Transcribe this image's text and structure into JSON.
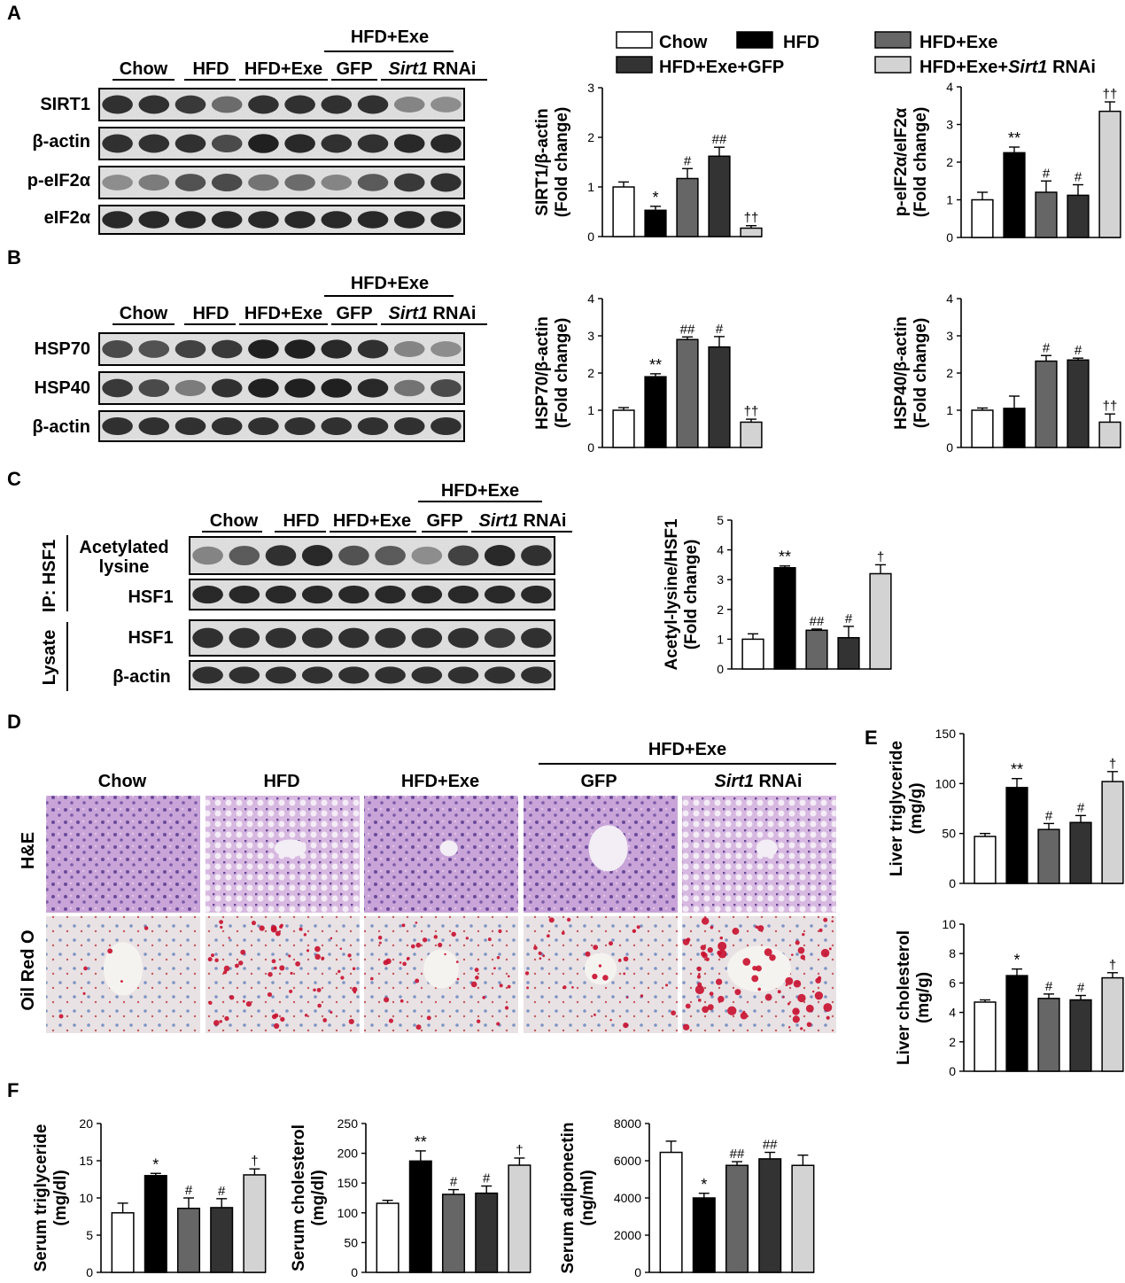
{
  "panel_letters": [
    "A",
    "B",
    "C",
    "D",
    "E",
    "F"
  ],
  "groups": [
    "Chow",
    "HFD",
    "HFD+Exe",
    "GFP",
    "Sirt1 RNAi"
  ],
  "hfd_exe_header": "HFD+Exe",
  "sirt1_italic": "Sirt1",
  "rnai_suffix": " RNAi",
  "legend": {
    "entries": [
      "Chow",
      "HFD",
      "HFD+Exe",
      "HFD+Exe+GFP",
      "HFD+Exe+Sirt1 RNAi"
    ],
    "gfp_label": "HFD+Exe+GFP",
    "sirt1_prefix": "HFD+Exe+",
    "colors": [
      "#ffffff",
      "#000000",
      "#666666",
      "#333333",
      "#d3d3d3"
    ]
  },
  "blots": {
    "A": [
      "SIRT1",
      "β-actin",
      "p-eIF2α",
      "eIF2α"
    ],
    "B": [
      "HSP70",
      "HSP40",
      "β-actin"
    ],
    "C_ip_label": "IP: HSF1",
    "C_lysate_label": "Lysate",
    "C_rows": [
      "Acetylated",
      "lysine",
      "HSF1",
      "HSF1",
      "β-actin"
    ]
  },
  "histology": {
    "rows": [
      "H&E",
      "Oil Red O"
    ]
  },
  "chart_data": [
    {
      "id": "A1",
      "type": "bar",
      "ylabel": [
        "SIRT1/β-actin",
        "(Fold change)"
      ],
      "ylim": [
        0,
        3
      ],
      "ticks": [
        0,
        1,
        2,
        3
      ],
      "values": [
        1.0,
        0.53,
        1.17,
        1.62,
        0.17
      ],
      "errors": [
        0.1,
        0.08,
        0.2,
        0.18,
        0.05
      ],
      "annotations": [
        "",
        "*",
        "#",
        "##",
        "††"
      ]
    },
    {
      "id": "A2",
      "type": "bar",
      "ylabel": [
        "p-eIF2α/eIF2α",
        "(Fold change)"
      ],
      "ylim": [
        0,
        4
      ],
      "ticks": [
        0,
        1,
        2,
        3,
        4
      ],
      "values": [
        1.0,
        2.25,
        1.2,
        1.12,
        3.35
      ],
      "errors": [
        0.2,
        0.15,
        0.3,
        0.28,
        0.25
      ],
      "annotations": [
        "",
        "**",
        "#",
        "#",
        "††"
      ]
    },
    {
      "id": "B1",
      "type": "bar",
      "ylabel": [
        "HSP70/β-actin",
        "(Fold change)"
      ],
      "ylim": [
        0,
        4
      ],
      "ticks": [
        0,
        1,
        2,
        3,
        4
      ],
      "values": [
        1.0,
        1.9,
        2.9,
        2.7,
        0.68
      ],
      "errors": [
        0.07,
        0.08,
        0.07,
        0.28,
        0.08
      ],
      "annotations": [
        "",
        "**",
        "##",
        "#",
        "††"
      ]
    },
    {
      "id": "B2",
      "type": "bar",
      "ylabel": [
        "HSP40/β-actin",
        "(Fold change)"
      ],
      "ylim": [
        0,
        4
      ],
      "ticks": [
        0,
        1,
        2,
        3,
        4
      ],
      "values": [
        1.0,
        1.05,
        2.32,
        2.35,
        0.68
      ],
      "errors": [
        0.06,
        0.33,
        0.15,
        0.05,
        0.22
      ],
      "annotations": [
        "",
        "",
        "#",
        "#",
        "††"
      ]
    },
    {
      "id": "C1",
      "type": "bar",
      "ylabel": [
        "Acetyl-lysine/HSF1",
        "(Fold change)"
      ],
      "ylim": [
        0,
        5
      ],
      "ticks": [
        0,
        1,
        2,
        3,
        4,
        5
      ],
      "values": [
        1.0,
        3.4,
        1.3,
        1.05,
        3.2
      ],
      "errors": [
        0.18,
        0.06,
        0.04,
        0.38,
        0.3
      ],
      "annotations": [
        "",
        "**",
        "##",
        "#",
        "†"
      ]
    },
    {
      "id": "E1",
      "type": "bar",
      "ylabel": [
        "Liver triglyceride",
        "(mg/g)"
      ],
      "ylim": [
        0,
        150
      ],
      "ticks": [
        0,
        50,
        100,
        150
      ],
      "values": [
        47,
        96,
        54,
        61,
        102
      ],
      "errors": [
        3,
        9,
        6,
        7,
        10
      ],
      "annotations": [
        "",
        "**",
        "#",
        "#",
        "†"
      ]
    },
    {
      "id": "E2",
      "type": "bar",
      "ylabel": [
        "Liver cholesterol",
        "(mg/g)"
      ],
      "ylim": [
        0,
        10
      ],
      "ticks": [
        0,
        2,
        4,
        6,
        8,
        10
      ],
      "values": [
        4.7,
        6.5,
        4.95,
        4.85,
        6.35
      ],
      "errors": [
        0.15,
        0.45,
        0.3,
        0.3,
        0.35
      ],
      "annotations": [
        "",
        "*",
        "#",
        "#",
        "†"
      ]
    },
    {
      "id": "F1",
      "type": "bar",
      "ylabel": [
        "Serum triglyceride",
        "(mg/dl)"
      ],
      "ylim": [
        0,
        20
      ],
      "ticks": [
        0,
        5,
        10,
        15,
        20
      ],
      "values": [
        8.0,
        13.0,
        8.6,
        8.7,
        13.1
      ],
      "errors": [
        1.3,
        0.3,
        1.4,
        1.2,
        0.8
      ],
      "annotations": [
        "",
        "*",
        "#",
        "#",
        "†"
      ]
    },
    {
      "id": "F2",
      "type": "bar",
      "ylabel": [
        "Serum cholesterol",
        "(mg/dl)"
      ],
      "ylim": [
        0,
        250
      ],
      "ticks": [
        0,
        50,
        100,
        150,
        200,
        250
      ],
      "values": [
        116,
        187,
        131,
        133,
        180
      ],
      "errors": [
        5,
        17,
        8,
        12,
        12
      ],
      "annotations": [
        "",
        "**",
        "#",
        "#",
        "†"
      ]
    },
    {
      "id": "F3",
      "type": "bar",
      "ylabel": [
        "Serum adiponectin",
        "(ng/ml)"
      ],
      "ylim": [
        0,
        8000
      ],
      "ticks": [
        0,
        2000,
        4000,
        6000,
        8000
      ],
      "values": [
        6450,
        4000,
        5750,
        6100,
        5750
      ],
      "errors": [
        600,
        250,
        200,
        350,
        550
      ],
      "annotations": [
        "",
        "*",
        "##",
        "##",
        ""
      ]
    }
  ]
}
